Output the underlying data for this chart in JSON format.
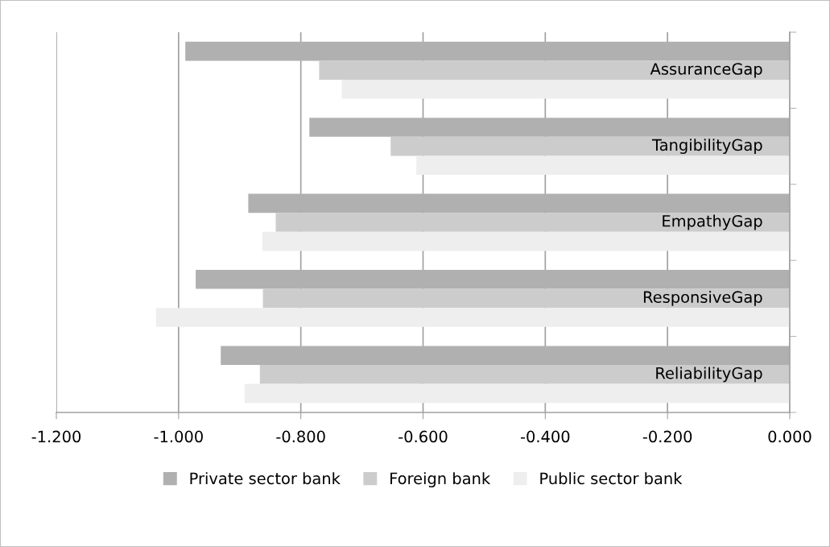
{
  "chart_data": {
    "type": "bar",
    "orientation": "horizontal",
    "categories": [
      "AssuranceGap",
      "TangibilityGap",
      "EmpathyGap",
      "ResponsiveGap",
      "ReliabilityGap"
    ],
    "series": [
      {
        "name": "Private sector bank",
        "color": "#b0b0b0",
        "values": [
          -0.989,
          -0.786,
          -0.886,
          -0.972,
          -0.931
        ]
      },
      {
        "name": "Foreign bank",
        "color": "#cccccc",
        "values": [
          -0.77,
          -0.653,
          -0.841,
          -0.862,
          -0.867
        ]
      },
      {
        "name": "Public sector bank",
        "color": "#eeeeee",
        "values": [
          -0.733,
          -0.611,
          -0.863,
          -1.037,
          -0.892
        ]
      }
    ],
    "xlim": [
      -1.2,
      0
    ],
    "xticks": [
      {
        "value": -1.2,
        "label": "-1.200"
      },
      {
        "value": -1.0,
        "label": "-1.000"
      },
      {
        "value": -0.8,
        "label": "-0.800"
      },
      {
        "value": -0.6,
        "label": "-0.600"
      },
      {
        "value": -0.4,
        "label": "-0.400"
      },
      {
        "value": -0.2,
        "label": "-0.200"
      },
      {
        "value": 0,
        "label": "0.000"
      }
    ],
    "grid": "x",
    "legend": "bottom"
  }
}
